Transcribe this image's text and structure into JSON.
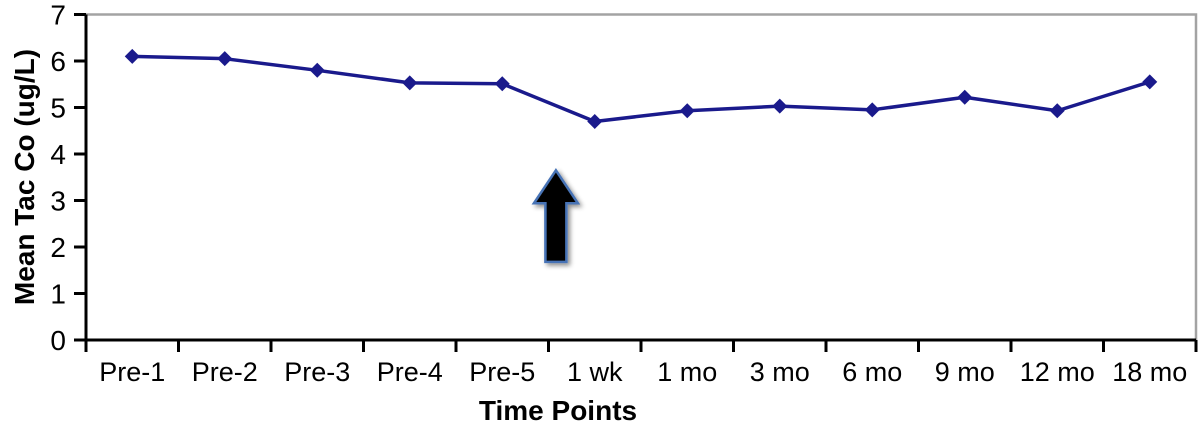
{
  "chart_data": {
    "type": "line",
    "xlabel": "Time Points",
    "ylabel": "Mean Tac Co (ug/L)",
    "categories": [
      "Pre-1",
      "Pre-2",
      "Pre-3",
      "Pre-4",
      "Pre-5",
      "1 wk",
      "1 mo",
      "3 mo",
      "6 mo",
      "9 mo",
      "12 mo",
      "18 mo"
    ],
    "values": [
      6.1,
      6.05,
      5.8,
      5.53,
      5.51,
      4.7,
      4.93,
      5.03,
      4.95,
      5.22,
      4.93,
      5.55
    ],
    "ylim": [
      0,
      7
    ],
    "yticks": [
      0,
      1,
      2,
      3,
      4,
      5,
      6,
      7
    ],
    "grid": false,
    "legend": false,
    "marker": "diamond",
    "colors": {
      "line": "#1a1a8c",
      "marker": "#1a1a8c",
      "axis": "#000000",
      "plot_border": "#a3a3a3",
      "text": "#000000"
    },
    "annotation": {
      "type": "up-arrow",
      "between": [
        "Pre-5",
        "1 wk"
      ],
      "x_index": 4.58,
      "y_base": 1.68,
      "y_tip": 3.65,
      "fill": "#060606",
      "border": "#4673b6"
    }
  }
}
